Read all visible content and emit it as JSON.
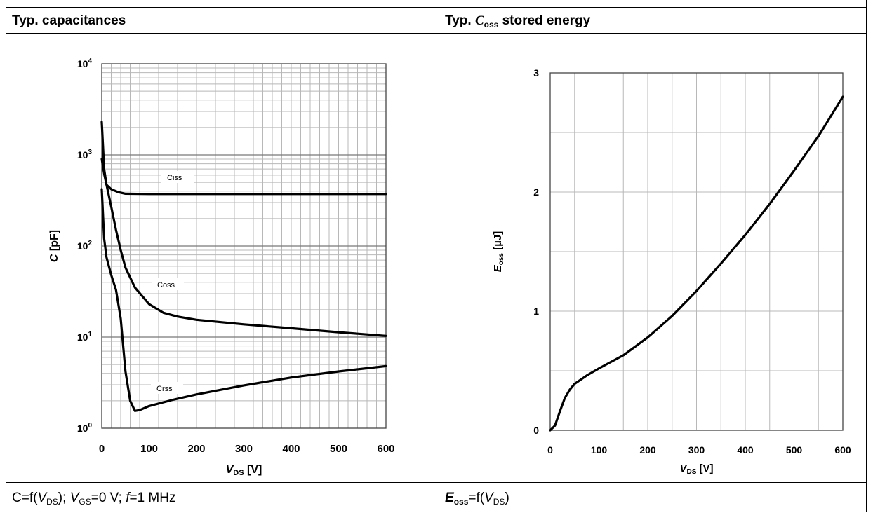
{
  "left_panel": {
    "title": "Typ. capacitances",
    "caption": {
      "c_part": "C=f(",
      "v": "V",
      "ds_sub": "DS",
      "mid": "); ",
      "v2": "V",
      "gs_sub": "GS",
      "vgs_value": "=0 V; ",
      "f_sym": "f",
      "f_value": "=1 MHz"
    }
  },
  "right_panel": {
    "title_prefix": "Typ. ",
    "title_c": "C",
    "title_sub": "oss",
    "title_suffix": " stored energy",
    "caption": {
      "e": "E",
      "e_sub": "oss",
      "mid": "=f(",
      "v": "V",
      "ds_sub": "DS",
      "end": ")"
    }
  },
  "chart_data": [
    {
      "type": "line",
      "title": "Typ. capacitances",
      "xlabel": "V_DS [V]",
      "ylabel": "C [pF]",
      "xlabel_main": "V",
      "xlabel_sub": "DS",
      "xlabel_unit": " [V]",
      "ylabel_main": "C",
      "ylabel_unit": " [pF]",
      "xlim": [
        0,
        600
      ],
      "ylim": [
        1,
        10000
      ],
      "yscale": "log",
      "grid": true,
      "x_ticks": [
        "0",
        "100",
        "200",
        "300",
        "400",
        "500",
        "600"
      ],
      "y_ticks": [
        {
          "base": "10",
          "exp": "0"
        },
        {
          "base": "10",
          "exp": "1"
        },
        {
          "base": "10",
          "exp": "2"
        },
        {
          "base": "10",
          "exp": "3"
        },
        {
          "base": "10",
          "exp": "4"
        }
      ],
      "series": [
        {
          "name": "Ciss",
          "x": [
            0,
            5,
            10,
            20,
            35,
            50,
            100,
            200,
            300,
            400,
            500,
            600
          ],
          "y": [
            2300,
            700,
            470,
            420,
            390,
            375,
            372,
            372,
            372,
            372,
            372,
            372
          ]
        },
        {
          "name": "Coss",
          "x": [
            0,
            5,
            10,
            20,
            30,
            40,
            50,
            70,
            100,
            130,
            160,
            200,
            300,
            400,
            500,
            600
          ],
          "y": [
            900,
            620,
            470,
            270,
            150,
            90,
            58,
            35,
            23,
            18.5,
            16.8,
            15.5,
            13.8,
            12.5,
            11.3,
            10.3
          ]
        },
        {
          "name": "Crss",
          "x": [
            0,
            5,
            10,
            20,
            30,
            40,
            50,
            60,
            70,
            80,
            100,
            150,
            200,
            300,
            400,
            500,
            600
          ],
          "y": [
            420,
            120,
            75,
            48,
            33,
            16,
            4.2,
            2.0,
            1.55,
            1.58,
            1.75,
            2.05,
            2.35,
            2.95,
            3.6,
            4.2,
            4.8
          ]
        }
      ]
    },
    {
      "type": "line",
      "title": "Typ. C_oss stored energy",
      "xlabel": "V_DS [V]",
      "ylabel": "E_oss [µJ]",
      "xlabel_main": "V",
      "xlabel_sub": "DS",
      "xlabel_unit": " [V]",
      "ylabel_main": "E",
      "ylabel_sub": "oss",
      "ylabel_unit": " [µJ]",
      "xlim": [
        0,
        600
      ],
      "ylim": [
        0,
        3
      ],
      "grid": true,
      "x_ticks": [
        "0",
        "100",
        "200",
        "300",
        "400",
        "500",
        "600"
      ],
      "y_ticks": [
        "0",
        "1",
        "2",
        "3"
      ],
      "series": [
        {
          "name": "Eoss",
          "x": [
            0,
            10,
            20,
            30,
            40,
            50,
            75,
            100,
            150,
            200,
            250,
            300,
            350,
            400,
            450,
            500,
            550,
            600
          ],
          "y": [
            0,
            0.04,
            0.16,
            0.27,
            0.34,
            0.39,
            0.46,
            0.52,
            0.63,
            0.78,
            0.96,
            1.17,
            1.4,
            1.64,
            1.9,
            2.18,
            2.47,
            2.8
          ]
        }
      ]
    }
  ]
}
